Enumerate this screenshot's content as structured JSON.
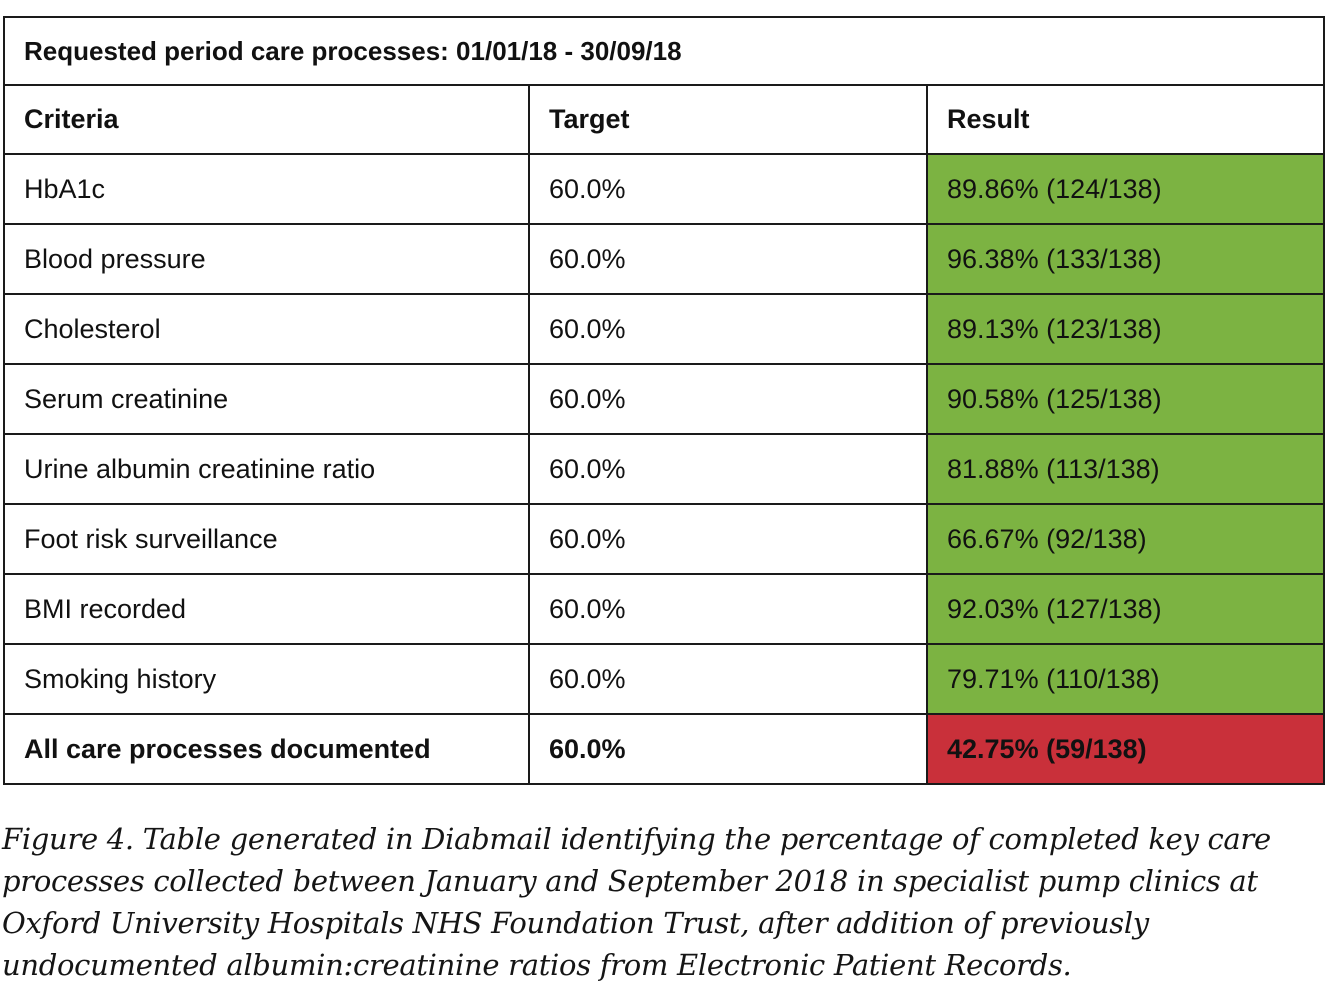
{
  "table": {
    "title": "Requested period care processes: 01/01/18 - 30/09/18",
    "columns": [
      "Criteria",
      "Target",
      "Result"
    ],
    "rows": [
      {
        "criteria": "HbA1c",
        "target": "60.0%",
        "result": "89.86% (124/138)",
        "status": "pass"
      },
      {
        "criteria": "Blood pressure",
        "target": "60.0%",
        "result": "96.38% (133/138)",
        "status": "pass"
      },
      {
        "criteria": "Cholesterol",
        "target": "60.0%",
        "result": "89.13% (123/138)",
        "status": "pass"
      },
      {
        "criteria": "Serum creatinine",
        "target": "60.0%",
        "result": "90.58% (125/138)",
        "status": "pass"
      },
      {
        "criteria": "Urine albumin creatinine ratio",
        "target": "60.0%",
        "result": "81.88% (113/138)",
        "status": "pass"
      },
      {
        "criteria": "Foot risk surveillance",
        "target": "60.0%",
        "result": "66.67% (92/138)",
        "status": "pass"
      },
      {
        "criteria": "BMI recorded",
        "target": "60.0%",
        "result": "92.03% (127/138)",
        "status": "pass"
      },
      {
        "criteria": "Smoking history",
        "target": "60.0%",
        "result": "79.71% (110/138)",
        "status": "pass"
      }
    ],
    "total": {
      "criteria": "All care processes documented",
      "target": "60.0%",
      "result": "42.75% (59/138)",
      "status": "fail"
    }
  },
  "colors": {
    "pass": "#7cb342",
    "fail": "#c9303a"
  },
  "caption": "Figure 4. Table generated in Diabmail identifying the percentage of completed key care processes collected between January and September 2018 in specialist pump clinics at Oxford University Hospitals NHS Foundation Trust, after addition of previously undocumented albumin:creatinine ratios from Electronic Patient Records."
}
